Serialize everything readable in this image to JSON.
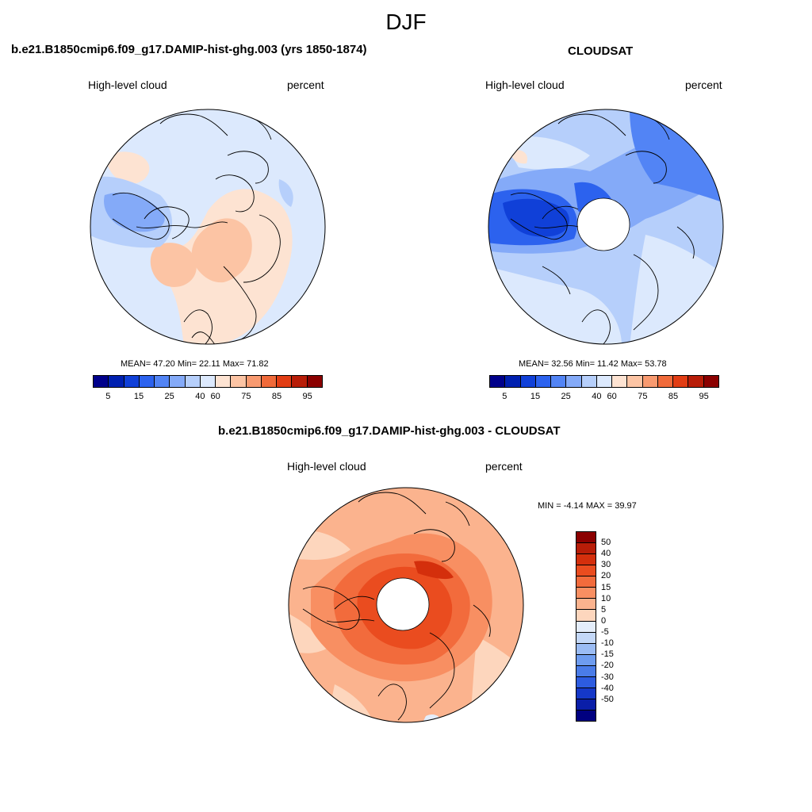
{
  "page": {
    "title": "DJF"
  },
  "panels": [
    {
      "title": "b.e21.B1850cmip6.f09_g17.DAMIP-hist-ghg.003 (yrs 1850-1874)",
      "left_label": "High-level cloud",
      "right_label": "percent",
      "stats": "MEAN=  47.20  Min=  22.11  Max=  71.82",
      "colorbar_ticks": [
        "5",
        "15",
        "25",
        "40",
        "60",
        "75",
        "85",
        "95"
      ]
    },
    {
      "title": "CLOUDSAT",
      "left_label": "High-level cloud",
      "right_label": "percent",
      "stats": "MEAN=  32.56  Min=  11.42  Max=  53.78",
      "colorbar_ticks": [
        "5",
        "15",
        "25",
        "40",
        "60",
        "75",
        "85",
        "95"
      ]
    },
    {
      "title": "b.e21.B1850cmip6.f09_g17.DAMIP-hist-ghg.003 - CLOUDSAT",
      "left_label": "High-level cloud",
      "right_label": "percent",
      "stats": "MIN =  -4.14 MAX =  39.97",
      "colorbar_ticks": [
        "50",
        "40",
        "30",
        "20",
        "15",
        "10",
        "5",
        "0",
        "-5",
        "-10",
        "-15",
        "-20",
        "-30",
        "-40",
        "-50"
      ]
    }
  ],
  "colors": {
    "abs_scale": [
      "#00008b",
      "#0020b0",
      "#1040d8",
      "#2c62ee",
      "#5284f5",
      "#84aaf8",
      "#b6cffb",
      "#dce9fd",
      "#fde3d2",
      "#fcc4a4",
      "#f89a70",
      "#f06a3a",
      "#e23d14",
      "#b81d08",
      "#8b0000"
    ],
    "diff_scale": [
      "#8b0000",
      "#b81d08",
      "#d42f0c",
      "#ea4c1f",
      "#f26b3c",
      "#f88f62",
      "#fbb38e",
      "#fdd6bd",
      "#e4edfa",
      "#c4d8f8",
      "#9bbcf4",
      "#6e9cef",
      "#4a7ce8",
      "#2d5ce0",
      "#1538c8",
      "#0a1ea8",
      "#000080"
    ]
  }
}
